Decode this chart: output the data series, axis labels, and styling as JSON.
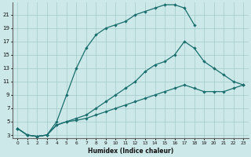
{
  "xlabel": "Humidex (Indice chaleur)",
  "bg_color": "#cce8e8",
  "grid_color": "#aacece",
  "line_color": "#1a6e6e",
  "xlim": [
    -0.5,
    23.5
  ],
  "ylim": [
    2.5,
    22.8
  ],
  "xticks": [
    0,
    1,
    2,
    3,
    4,
    5,
    6,
    7,
    8,
    9,
    10,
    11,
    12,
    13,
    14,
    15,
    16,
    17,
    18,
    19,
    20,
    21,
    22,
    23
  ],
  "yticks": [
    3,
    5,
    7,
    9,
    11,
    13,
    15,
    17,
    19,
    21
  ],
  "curve1_x": [
    0,
    1,
    2,
    3,
    4,
    5,
    6,
    7,
    8,
    9,
    10,
    11,
    12,
    13,
    14,
    15,
    16,
    17,
    18
  ],
  "curve1_y": [
    4,
    3,
    2.8,
    3,
    5,
    9,
    13,
    16,
    18,
    19,
    19.5,
    20,
    21,
    21.5,
    22,
    22.5,
    22.5,
    22,
    19.5
  ],
  "curve2_x": [
    0,
    1,
    2,
    3,
    4,
    5,
    6,
    7,
    8,
    9,
    10,
    11,
    12,
    13,
    14,
    15,
    16,
    17,
    18,
    19,
    20,
    21,
    22,
    23
  ],
  "curve2_y": [
    4,
    3,
    2.8,
    3,
    4.5,
    5,
    5.5,
    6,
    7,
    8,
    9,
    10,
    11,
    12.5,
    13.5,
    14,
    15,
    17,
    16,
    14,
    13,
    12,
    11,
    10.5
  ],
  "curve3_x": [
    0,
    1,
    2,
    3,
    4,
    5,
    6,
    7,
    8,
    9,
    10,
    11,
    12,
    13,
    14,
    15,
    16,
    17,
    18,
    19,
    20,
    21,
    22,
    23
  ],
  "curve3_y": [
    4,
    3,
    2.8,
    3,
    4.5,
    5,
    5.2,
    5.5,
    6,
    6.5,
    7,
    7.5,
    8,
    8.5,
    9,
    9.5,
    10,
    10.5,
    10,
    9.5,
    9.5,
    9.5,
    10,
    10.5
  ]
}
